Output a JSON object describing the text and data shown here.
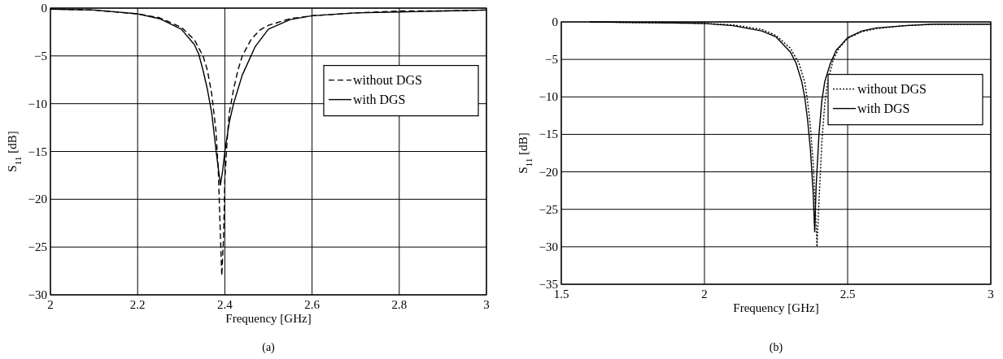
{
  "chart_data": [
    {
      "type": "line",
      "xlabel": "Frequency [GHz]",
      "ylabel": "S$_{11}$ [dB]",
      "annotations": [
        "(a)"
      ],
      "xlim": [
        2,
        3
      ],
      "xticks": [
        2,
        2.2,
        2.4,
        2.6,
        2.8,
        3
      ],
      "ylim": [
        -30,
        0
      ],
      "yticks": [
        {
          "value": -30,
          "label": "−30"
        },
        {
          "value": -25,
          "label": "−25"
        },
        {
          "value": -20,
          "label": "−20"
        },
        {
          "value": -15,
          "label": "−15"
        },
        {
          "value": -10,
          "label": "−10"
        },
        {
          "value": -5,
          "label": "−5"
        },
        0
      ],
      "grid": true,
      "legend": "top right",
      "series": [
        {
          "name": "without DGS",
          "color": "#000000",
          "line_style": "dashed",
          "x": [
            2,
            2.1,
            2.2,
            2.25,
            2.3,
            2.33,
            2.35,
            2.36,
            2.37,
            2.38,
            2.385,
            2.39,
            2.393,
            2.397,
            2.4,
            2.405,
            2.41,
            2.42,
            2.43,
            2.44,
            2.46,
            2.48,
            2.5,
            2.55,
            2.6,
            2.7,
            2.8,
            2.9,
            3
          ],
          "values": [
            -0.1,
            -0.2,
            -0.6,
            -1.0,
            -2.0,
            -3.3,
            -5,
            -6.5,
            -9,
            -13,
            -17,
            -24,
            -28,
            -24,
            -18,
            -14,
            -11,
            -8.5,
            -6.5,
            -5,
            -3.3,
            -2.3,
            -1.8,
            -1.1,
            -0.8,
            -0.5,
            -0.3,
            -0.3,
            -0.2
          ]
        },
        {
          "name": "with DGS",
          "color": "#000000",
          "line_style": "solid",
          "x": [
            2,
            2.1,
            2.2,
            2.25,
            2.3,
            2.33,
            2.34,
            2.35,
            2.36,
            2.37,
            2.38,
            2.39,
            2.395,
            2.4,
            2.41,
            2.42,
            2.43,
            2.44,
            2.45,
            2.46,
            2.47,
            2.5,
            2.55,
            2.6,
            2.7,
            2.8,
            2.9,
            3
          ],
          "values": [
            -0.1,
            -0.2,
            -0.6,
            -1.1,
            -2.2,
            -3.8,
            -4.8,
            -6.5,
            -8.5,
            -11,
            -15,
            -18.5,
            -17,
            -15,
            -12,
            -10,
            -8.5,
            -7,
            -6,
            -5,
            -4,
            -2.2,
            -1.2,
            -0.8,
            -0.5,
            -0.4,
            -0.3,
            -0.2
          ]
        }
      ]
    },
    {
      "type": "line",
      "xlabel": "Frequency [GHz]",
      "ylabel": "S$_{11}$ [dB]",
      "annotations": [
        "(b)"
      ],
      "xlim": [
        1.5,
        3
      ],
      "xticks": [
        1.5,
        2,
        2.5,
        3
      ],
      "ylim": [
        -35,
        0
      ],
      "yticks": [
        {
          "value": -35,
          "label": "−35"
        },
        {
          "value": -30,
          "label": "−30"
        },
        {
          "value": -25,
          "label": "−25"
        },
        {
          "value": -20,
          "label": "−20"
        },
        {
          "value": -15,
          "label": "−15"
        },
        {
          "value": -10,
          "label": "−10"
        },
        {
          "value": -5,
          "label": "−5"
        },
        0
      ],
      "grid": true,
      "legend": "top right",
      "series": [
        {
          "name": "without DGS",
          "color": "#000000",
          "line_style": "dotted",
          "x": [
            1.6,
            1.8,
            2,
            2.1,
            2.2,
            2.25,
            2.3,
            2.33,
            2.35,
            2.36,
            2.37,
            2.38,
            2.39,
            2.393,
            2.4,
            2.41,
            2.42,
            2.43,
            2.45,
            2.47,
            2.5,
            2.55,
            2.6,
            2.7,
            2.8,
            3
          ],
          "values": [
            0,
            -0.1,
            -0.2,
            -0.4,
            -1.0,
            -1.8,
            -3.5,
            -5.5,
            -8,
            -10.5,
            -14,
            -19,
            -27,
            -30,
            -24,
            -16,
            -11,
            -8,
            -5,
            -3.5,
            -2.2,
            -1.3,
            -0.9,
            -0.5,
            -0.3,
            -0.3
          ]
        },
        {
          "name": "with DGS",
          "color": "#000000",
          "line_style": "solid",
          "x": [
            1.6,
            1.8,
            2,
            2.1,
            2.2,
            2.25,
            2.3,
            2.32,
            2.34,
            2.35,
            2.36,
            2.37,
            2.38,
            2.385,
            2.39,
            2.4,
            2.41,
            2.42,
            2.44,
            2.46,
            2.5,
            2.55,
            2.6,
            2.7,
            2.8,
            3
          ],
          "values": [
            0,
            -0.1,
            -0.2,
            -0.5,
            -1.2,
            -2,
            -4,
            -5.5,
            -8,
            -10,
            -13,
            -17,
            -23,
            -28,
            -22,
            -15,
            -10.5,
            -8,
            -5.5,
            -3.8,
            -2.1,
            -1.2,
            -0.8,
            -0.5,
            -0.3,
            -0.3
          ]
        }
      ]
    }
  ]
}
